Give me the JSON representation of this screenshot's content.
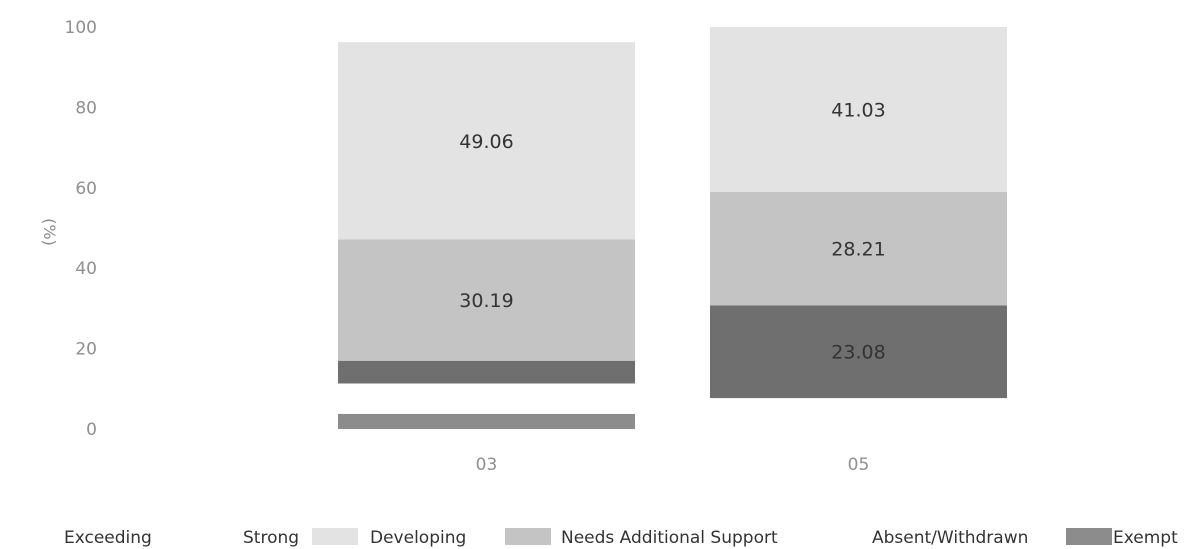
{
  "chart_data": {
    "type": "bar",
    "stacked": true,
    "categories": [
      "03",
      "05"
    ],
    "ylabel": "(%)",
    "ylim": [
      0,
      100
    ],
    "yticks": [
      0,
      20,
      40,
      60,
      80,
      100
    ],
    "grid": false,
    "legend_position": "bottom",
    "series": [
      {
        "name": "Exempt",
        "color": "#8c8c8c",
        "values": [
          3.77,
          0
        ],
        "labels": [
          "",
          ""
        ]
      },
      {
        "name": "Absent/Withdrawn",
        "color": "#ffffff",
        "values": [
          7.55,
          7.69
        ],
        "labels": [
          "",
          ""
        ]
      },
      {
        "name": "Needs Additional Support",
        "color": "#6f6f6f",
        "values": [
          5.66,
          23.08
        ],
        "labels": [
          "",
          "23.08"
        ]
      },
      {
        "name": "Developing",
        "color": "#c4c4c4",
        "values": [
          30.19,
          28.21
        ],
        "labels": [
          "30.19",
          "28.21"
        ]
      },
      {
        "name": "Strong",
        "color": "#e3e3e3",
        "values": [
          49.06,
          41.03
        ],
        "labels": [
          "49.06",
          "41.03"
        ]
      },
      {
        "name": "Exceeding",
        "color": "#ffffff",
        "values": [
          0,
          0
        ],
        "labels": [
          "",
          ""
        ]
      }
    ],
    "legend": [
      {
        "name": "Exceeding",
        "color": "#ffffff"
      },
      {
        "name": "Strong",
        "color": "#e3e3e3"
      },
      {
        "name": "Developing",
        "color": "#c4c4c4"
      },
      {
        "name": "Needs Additional Support",
        "color": "#6f6f6f"
      },
      {
        "name": "Absent/Withdrawn",
        "color": "#ffffff"
      },
      {
        "name": "Exempt",
        "color": "#8c8c8c"
      }
    ]
  }
}
